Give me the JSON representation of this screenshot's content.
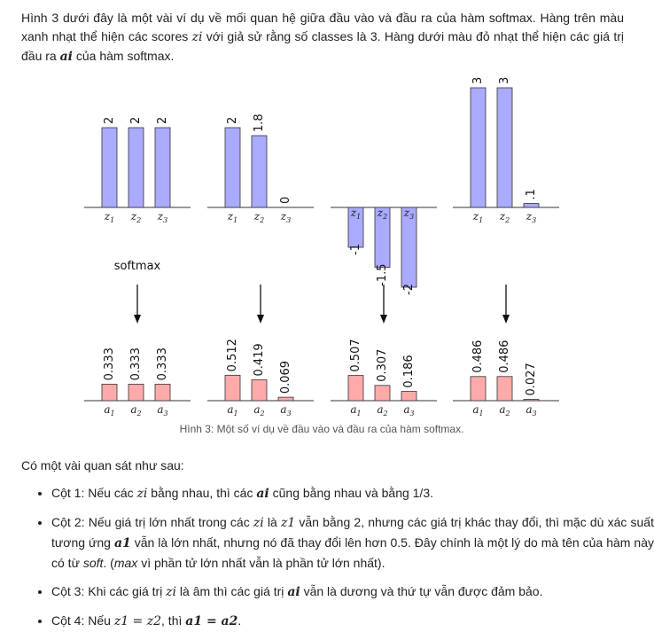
{
  "intro": {
    "part1": "Hình 3 dưới đây là một vài ví dụ về mối quan hệ giữa đầu vào và đầu ra của hàm softmax. Hàng trên màu xanh nhạt thể hiện các scores ",
    "z_i": "zi",
    "part2": " với giả sử rằng số classes là 3. Hàng dưới màu đỏ nhạt thể hiện các giá trị đầu ra ",
    "a_i": "ai",
    "part3": " của hàm softmax."
  },
  "figure": {
    "arrow_label": "softmax",
    "caption": "Hình 3: Một số ví dụ về đầu vào và đầu ra của hàm softmax."
  },
  "chart_data": {
    "type": "bar",
    "top_row": {
      "color": "#aaaaff",
      "categories": [
        "z1",
        "z2",
        "z3"
      ],
      "series": [
        {
          "values": [
            2,
            2,
            2
          ],
          "labels": [
            "2",
            "2",
            "2"
          ]
        },
        {
          "values": [
            2,
            1.8,
            0
          ],
          "labels": [
            "2",
            "1.8",
            "0"
          ]
        },
        {
          "values": [
            -1,
            -1.5,
            -2
          ],
          "labels": [
            "-1",
            "-1.5",
            "-2"
          ]
        },
        {
          "values": [
            3,
            3,
            0.1
          ],
          "labels": [
            "3",
            "3",
            ".1"
          ]
        }
      ]
    },
    "bottom_row": {
      "color": "#ffaaaa",
      "categories": [
        "a1",
        "a2",
        "a3"
      ],
      "series": [
        {
          "values": [
            0.333,
            0.333,
            0.333
          ],
          "labels": [
            "0.333",
            "0.333",
            "0.333"
          ]
        },
        {
          "values": [
            0.512,
            0.419,
            0.069
          ],
          "labels": [
            "0.512",
            "0.419",
            "0.069"
          ]
        },
        {
          "values": [
            0.507,
            0.307,
            0.186
          ],
          "labels": [
            "0.507",
            "0.307",
            "0.186"
          ]
        },
        {
          "values": [
            0.486,
            0.486,
            0.027
          ],
          "labels": [
            "0.486",
            "0.486",
            "0.027"
          ]
        }
      ]
    }
  },
  "observations": {
    "heading": "Có một vài quan sát như sau:",
    "items": [
      {
        "pre": "Cột 1: Nếu các ",
        "m1": "zi",
        "mid": " bằng nhau, thì các ",
        "m2": "ai",
        "post": " cũng bằng nhau và bằng 1/3."
      },
      {
        "pre": "Cột 2: Nếu giá trị lớn nhất trong các ",
        "m1": "zi",
        "mid": " là ",
        "m2": "z1",
        "mid2": " vẫn bằng 2, nhưng các giá trị khác thay đổi, thì mặc dù xác suất tương ứng ",
        "m3": "a1",
        "mid3": " vẫn là lớn nhất, nhưng nó đã thay đổi lên hơn 0.5. Đây chính là một lý do mà tên của hàm này có từ ",
        "soft": "soft",
        "mid4": ". (",
        "max": "max",
        "post": " vì phần tử lớn nhất vẫn là phần tử lớn nhất)."
      },
      {
        "pre": "Cột 3: Khi các giá trị ",
        "m1": "zi",
        "mid": " là âm thì các giá trị ",
        "m2": "ai",
        "post": " vẫn là dương và thứ tự vẫn được đảm bảo."
      },
      {
        "pre": "Cột 4: Nếu ",
        "m1": "z1 = z2",
        "mid": ", thì ",
        "m2": "a1 = a2",
        "post": "."
      }
    ]
  }
}
